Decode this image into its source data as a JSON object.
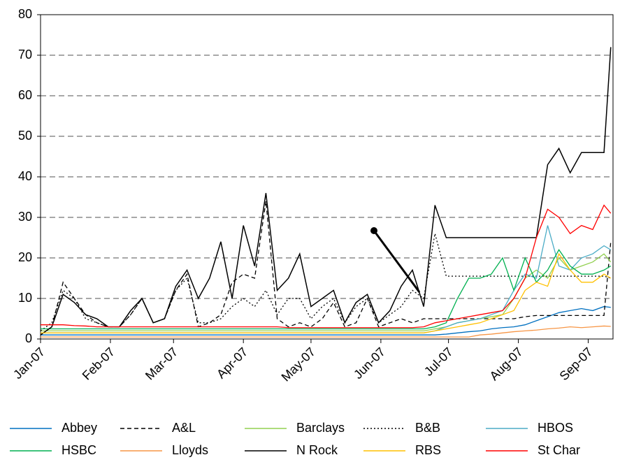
{
  "chart_data": {
    "type": "line",
    "x": [
      0,
      5,
      10,
      15,
      20,
      25,
      30,
      35,
      40,
      45,
      50,
      55,
      60,
      65,
      70,
      75,
      80,
      85,
      90,
      95,
      100,
      105,
      110,
      115,
      120,
      125,
      130,
      135,
      140,
      145,
      150,
      155,
      160,
      165,
      170,
      175,
      180,
      185,
      190,
      195,
      200,
      205,
      210,
      215,
      220,
      225,
      230,
      235,
      240,
      245,
      250,
      253
    ],
    "xlim": [
      0,
      254
    ],
    "xticks": [
      {
        "value": 0,
        "label": "Jan-07"
      },
      {
        "value": 31,
        "label": "Feb-07"
      },
      {
        "value": 59,
        "label": "Mar-07"
      },
      {
        "value": 90,
        "label": "Apr-07"
      },
      {
        "value": 120,
        "label": "May-07"
      },
      {
        "value": 151,
        "label": "Jun-07"
      },
      {
        "value": 181,
        "label": "Jul-07"
      },
      {
        "value": 212,
        "label": "Aug-07"
      },
      {
        "value": 243,
        "label": "Sep-07"
      }
    ],
    "ylim": [
      0,
      80
    ],
    "yticks": [
      0,
      10,
      20,
      30,
      40,
      50,
      60,
      70,
      80
    ],
    "grid": true,
    "legend": "bottom",
    "series": [
      {
        "name": "Abbey",
        "color": "#0070c0",
        "line_style": "solid",
        "values": [
          1,
          1,
          1,
          1,
          1,
          1,
          1,
          1,
          1,
          1,
          1,
          1,
          1,
          1,
          1,
          1,
          1,
          1,
          1,
          1,
          1,
          1,
          1,
          1,
          1,
          1,
          1,
          1,
          1,
          1,
          1,
          1,
          1,
          1,
          1,
          1,
          1.2,
          1.5,
          1.8,
          2,
          2.5,
          2.8,
          3,
          3.5,
          4.5,
          5.5,
          6.5,
          7,
          7.5,
          7,
          8,
          7.8
        ]
      },
      {
        "name": "A&L",
        "color": "#000000",
        "line_style": "dashed",
        "values": [
          1,
          3,
          14,
          10,
          6,
          4,
          3,
          3,
          6,
          10,
          4,
          5,
          12,
          16,
          3,
          4,
          6,
          14,
          16,
          15,
          34,
          5,
          3,
          4,
          3,
          5,
          9,
          3,
          4,
          10,
          3,
          4,
          5,
          4,
          5,
          5,
          5,
          5,
          5,
          5,
          5,
          5,
          5,
          5.5,
          5.8,
          5.8,
          5.8,
          5.8,
          5.8,
          5.8,
          5.8,
          24
        ]
      },
      {
        "name": "Barclays",
        "color": "#92d050",
        "line_style": "solid",
        "values": [
          2,
          2,
          2,
          2,
          2,
          2,
          2,
          2,
          2,
          2,
          2,
          2,
          2,
          2,
          2,
          2,
          2,
          2,
          2,
          2,
          2,
          2,
          2,
          2,
          2,
          2,
          2,
          2,
          2,
          2,
          2,
          2,
          2,
          2,
          2,
          2.5,
          3,
          4,
          4.5,
          5,
          5.5,
          6,
          10,
          15,
          17,
          15,
          20,
          17,
          18,
          19,
          21,
          19
        ]
      },
      {
        "name": "B&B",
        "color": "#000000",
        "line_style": "dotted",
        "values": [
          2,
          4,
          12,
          10,
          5,
          4,
          3,
          3,
          6,
          10,
          4,
          5,
          12,
          15,
          4,
          4,
          5,
          8,
          10,
          8,
          12,
          6,
          10,
          10,
          5,
          8,
          10,
          4,
          8,
          10,
          4,
          6,
          8,
          12,
          10,
          26,
          15.5,
          15.5,
          15.5,
          15.5,
          15.5,
          15.5,
          15.5,
          15.5,
          15.5,
          15.5,
          15.5,
          15.5,
          15.5,
          15.5,
          15.5,
          15
        ]
      },
      {
        "name": "HBOS",
        "color": "#4bacc6",
        "line_style": "solid",
        "values": [
          1.5,
          1.5,
          1.5,
          1.5,
          1.5,
          1.5,
          1.5,
          1.5,
          1.5,
          1.5,
          1.5,
          1.5,
          1.5,
          1.5,
          1.5,
          1.5,
          1.5,
          1.5,
          1.5,
          1.5,
          1.5,
          1.5,
          1.5,
          1.5,
          1.5,
          1.5,
          1.5,
          1.5,
          1.5,
          1.5,
          1.5,
          1.5,
          1.5,
          1.5,
          1.5,
          2,
          3,
          4,
          4.5,
          5,
          6,
          7,
          12,
          16,
          15,
          28,
          18,
          17,
          20,
          21,
          23,
          22
        ]
      },
      {
        "name": "HSBC",
        "color": "#00b050",
        "line_style": "solid",
        "values": [
          2.5,
          2.5,
          2.5,
          2.5,
          2.5,
          2.5,
          2.5,
          2.5,
          2.5,
          2.5,
          2.5,
          2.5,
          2.5,
          2.5,
          2.5,
          2.5,
          2.5,
          2.5,
          2.5,
          2.5,
          2.5,
          2.5,
          2.5,
          2.5,
          2.5,
          2.5,
          2.5,
          2.5,
          2.5,
          2.5,
          2.5,
          2.5,
          2.5,
          2.5,
          2.5,
          3,
          4,
          10,
          15,
          15,
          16,
          20,
          12,
          20,
          14,
          17,
          22,
          18,
          16,
          16,
          17,
          18
        ]
      },
      {
        "name": "Lloyds",
        "color": "#f79646",
        "line_style": "solid",
        "values": [
          0.5,
          0.5,
          0.5,
          0.5,
          0.5,
          0.5,
          0.5,
          0.5,
          0.5,
          0.5,
          0.5,
          0.5,
          0.5,
          0.5,
          0.5,
          0.5,
          0.5,
          0.5,
          0.5,
          0.5,
          0.5,
          0.5,
          0.5,
          0.5,
          0.5,
          0.5,
          0.5,
          0.5,
          0.5,
          0.5,
          0.5,
          0.5,
          0.5,
          0.5,
          0.5,
          0.5,
          0.5,
          0.5,
          0.5,
          1,
          1.2,
          1.5,
          1.8,
          2,
          2.2,
          2.5,
          2.7,
          3,
          2.8,
          3,
          3.2,
          3.1
        ]
      },
      {
        "name": "N Rock",
        "color": "#000000",
        "line_style": "solid",
        "values": [
          1,
          3,
          11,
          9,
          6,
          5,
          3,
          3,
          7,
          10,
          4,
          5,
          13,
          17,
          10,
          15,
          24,
          10,
          28,
          18,
          36,
          12,
          15,
          21,
          8,
          10,
          12,
          4,
          9,
          11,
          4,
          7,
          13,
          17,
          8,
          33,
          25,
          25,
          25,
          25,
          25,
          25,
          25,
          25,
          25,
          43,
          47,
          41,
          46,
          46,
          46,
          72
        ]
      },
      {
        "name": "RBS",
        "color": "#ffc000",
        "line_style": "solid",
        "values": [
          1.5,
          1.5,
          1.5,
          1.5,
          1.5,
          1.5,
          1.5,
          1.5,
          1.5,
          1.5,
          1.5,
          1.5,
          1.5,
          1.5,
          1.5,
          1.5,
          1.5,
          1.5,
          1.5,
          1.5,
          1.5,
          1.5,
          1.5,
          1.5,
          1.5,
          1.5,
          1.5,
          1.5,
          1.5,
          1.5,
          1.5,
          1.5,
          1.5,
          1.5,
          1.5,
          2,
          2.5,
          3,
          3.5,
          4,
          5,
          6,
          7,
          12,
          14,
          13,
          21,
          17,
          14,
          14,
          16,
          15
        ]
      },
      {
        "name": "St Char",
        "color": "#ff0000",
        "line_style": "solid",
        "values": [
          3.5,
          3.5,
          3.5,
          3.3,
          3.2,
          3,
          3,
          3,
          3,
          3,
          3,
          3,
          3,
          3,
          3,
          3,
          3,
          3,
          3,
          3,
          3,
          3,
          2.8,
          2.8,
          2.8,
          2.8,
          2.8,
          2.8,
          2.8,
          2.8,
          2.8,
          2.8,
          2.8,
          2.8,
          3,
          4,
          4.5,
          5,
          5.5,
          6,
          6.5,
          7,
          10,
          15,
          25,
          32,
          30,
          26,
          28,
          27,
          33,
          31
        ]
      }
    ]
  }
}
